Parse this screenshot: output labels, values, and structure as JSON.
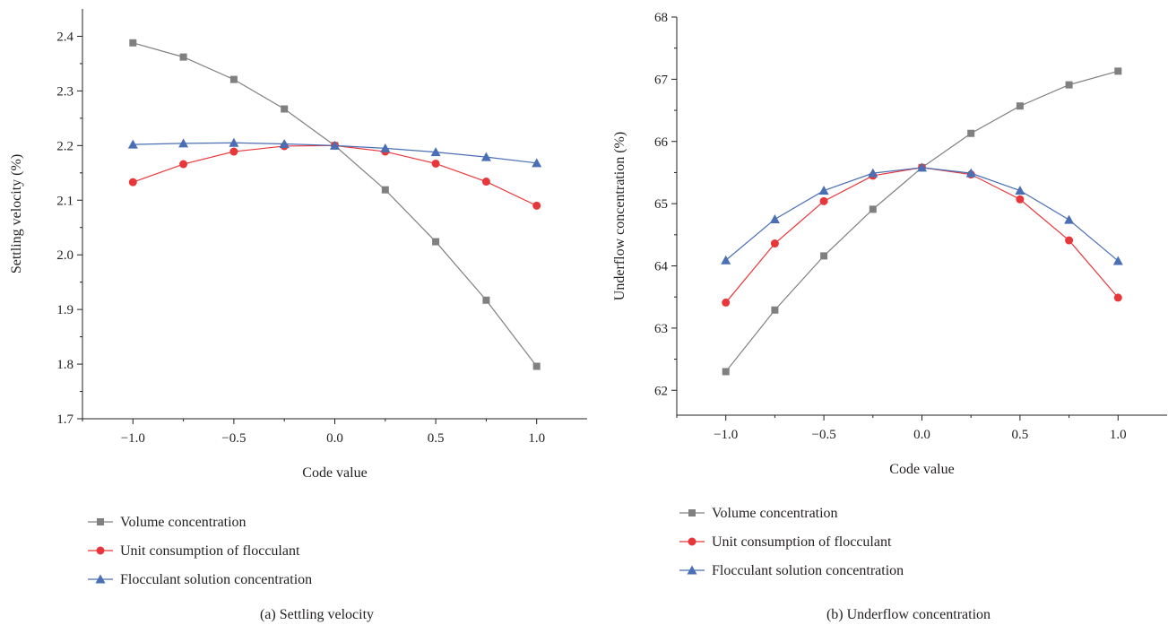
{
  "chart_data": [
    {
      "type": "line",
      "caption": "(a) Settling velocity",
      "xlabel": "Code value",
      "ylabel": "Settling velocity (%)",
      "xlim": [
        -1.25,
        1.25
      ],
      "ylim": [
        1.7,
        2.45
      ],
      "xticks": [
        -1.0,
        -0.5,
        0.0,
        0.5,
        1.0
      ],
      "xtick_labels": [
        "−1.0",
        "−0.5",
        "0.0",
        "0.5",
        "1.0"
      ],
      "yticks": [
        1.7,
        1.8,
        1.9,
        2.0,
        2.1,
        2.2,
        2.3,
        2.4
      ],
      "ytick_labels": [
        "1.7",
        "1.8",
        "1.9",
        "2.0",
        "2.1",
        "2.2",
        "2.3",
        "2.4"
      ],
      "x": [
        -1.0,
        -0.75,
        -0.5,
        -0.25,
        0.0,
        0.25,
        0.5,
        0.75,
        1.0
      ],
      "series": [
        {
          "name": "Volume concentration",
          "color": "#808080",
          "marker": "square",
          "values": [
            2.388,
            2.362,
            2.321,
            2.267,
            2.2,
            2.119,
            2.024,
            1.917,
            1.796
          ]
        },
        {
          "name": "Unit consumption of flocculant",
          "color": "#e8373b",
          "marker": "circle",
          "values": [
            2.133,
            2.166,
            2.189,
            2.199,
            2.2,
            2.189,
            2.167,
            2.134,
            2.09
          ]
        },
        {
          "name": "Flocculant solution concentration",
          "color": "#4a6fb5",
          "marker": "triangle",
          "values": [
            2.202,
            2.204,
            2.205,
            2.203,
            2.2,
            2.195,
            2.188,
            2.179,
            2.168
          ]
        }
      ],
      "legend_position": "below"
    },
    {
      "type": "line",
      "caption": "(b) Underflow concentration",
      "xlabel": "Code value",
      "ylabel": "Underflow concentration (%)",
      "xlim": [
        -1.25,
        1.25
      ],
      "ylim": [
        61.6,
        68
      ],
      "xticks": [
        -1.0,
        -0.5,
        0.0,
        0.5,
        1.0
      ],
      "xtick_labels": [
        "−1.0",
        "−0.5",
        "0.0",
        "0.5",
        "1.0"
      ],
      "yticks": [
        62,
        63,
        64,
        65,
        66,
        67,
        68
      ],
      "ytick_labels": [
        "62",
        "63",
        "64",
        "65",
        "66",
        "67",
        "68"
      ],
      "x": [
        -1.0,
        -0.75,
        -0.5,
        -0.25,
        0.0,
        0.25,
        0.5,
        0.75,
        1.0
      ],
      "series": [
        {
          "name": "Volume concentration",
          "color": "#808080",
          "marker": "square",
          "values": [
            62.3,
            63.29,
            64.16,
            64.91,
            65.58,
            66.13,
            66.57,
            66.91,
            67.13
          ]
        },
        {
          "name": "Unit consumption of flocculant",
          "color": "#e8373b",
          "marker": "circle",
          "values": [
            63.41,
            64.36,
            65.04,
            65.45,
            65.58,
            65.47,
            65.07,
            64.41,
            63.49
          ]
        },
        {
          "name": "Flocculant solution concentration",
          "color": "#4a6fb5",
          "marker": "triangle",
          "values": [
            64.09,
            64.75,
            65.21,
            65.49,
            65.58,
            65.49,
            65.21,
            64.74,
            64.08
          ]
        }
      ],
      "legend_position": "below"
    }
  ]
}
